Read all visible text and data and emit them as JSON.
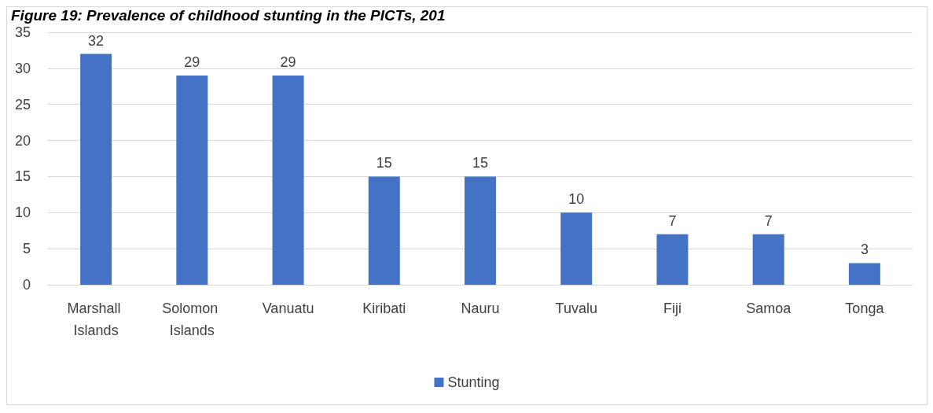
{
  "chart_data": {
    "type": "bar",
    "title": "Figure 19: Prevalence of childhood stunting in the PICTs, 201",
    "categories": [
      "Marshall Islands",
      "Solomon Islands",
      "Vanuatu",
      "Kiribati",
      "Nauru",
      "Tuvalu",
      "Fiji",
      "Samoa",
      "Tonga"
    ],
    "series": [
      {
        "name": "Stunting",
        "color": "#4472c4",
        "values": [
          32,
          29,
          29,
          15,
          15,
          10,
          7,
          7,
          3
        ]
      }
    ],
    "ylim": [
      0,
      35
    ],
    "yticks": [
      0,
      5,
      10,
      15,
      20,
      25,
      30,
      35
    ],
    "grid": "y",
    "legend": "bottom",
    "data_labels": true
  }
}
